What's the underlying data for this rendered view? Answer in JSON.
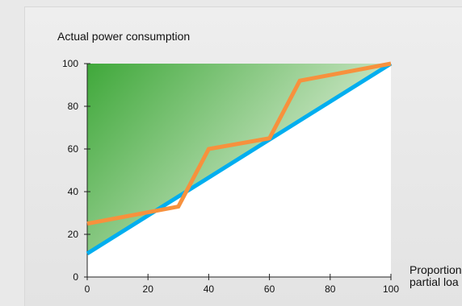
{
  "chart_data": {
    "type": "line",
    "title": "Actual power consumption",
    "xlabel_lines": [
      "Proportion",
      "partial loa"
    ],
    "ylabel": "",
    "xlim": [
      0,
      100
    ],
    "ylim": [
      0,
      100
    ],
    "x_ticks": [
      0,
      20,
      40,
      60,
      80,
      100
    ],
    "y_ticks": [
      0,
      20,
      40,
      60,
      80,
      100
    ],
    "grid": false,
    "series": [
      {
        "color": "#00aeef",
        "points": [
          [
            0,
            11
          ],
          [
            100,
            100
          ]
        ]
      },
      {
        "color": "#f7913d",
        "points": [
          [
            0,
            25
          ],
          [
            30,
            33
          ],
          [
            40,
            60
          ],
          [
            60,
            65
          ],
          [
            70,
            92
          ],
          [
            100,
            100
          ]
        ]
      }
    ],
    "shaded_region_colors": [
      "#3fa83a",
      "#eaf3e3"
    ]
  }
}
